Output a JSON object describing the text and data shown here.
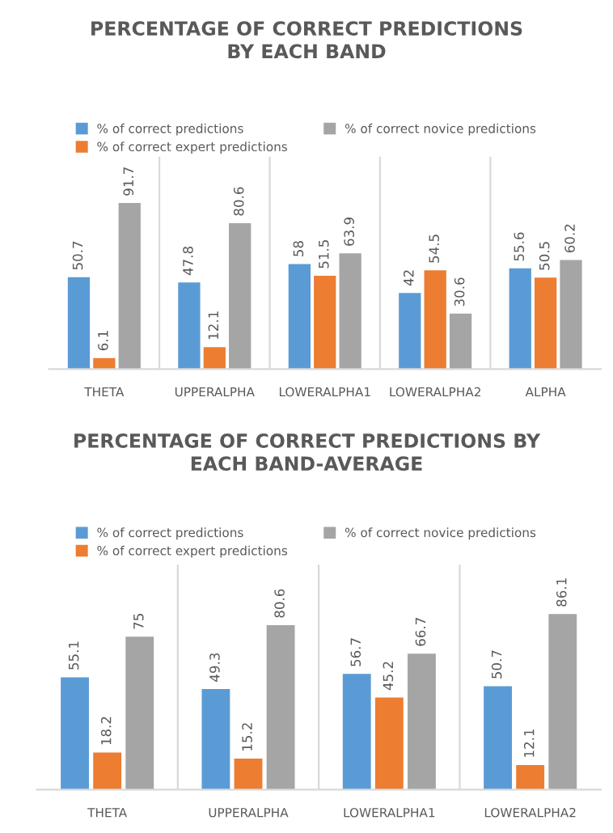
{
  "chart_data": [
    {
      "type": "bar",
      "title": "PERCENTAGE OF CORRECT PREDICTIONS\nBY EACH BAND",
      "categories": [
        "THETA",
        "UPPERALPHA",
        "LOWERALPHA1",
        "LOWERALPHA2",
        "ALPHA"
      ],
      "series": [
        {
          "name": "% of correct predictions",
          "color": "#5b9bd5",
          "values": [
            50.7,
            47.8,
            58,
            42,
            55.6
          ]
        },
        {
          "name": "% of correct expert predictions",
          "color": "#ed7d31",
          "values": [
            6.1,
            12.1,
            51.5,
            54.5,
            50.5
          ]
        },
        {
          "name": "% of correct novice predictions",
          "color": "#a5a5a5",
          "values": [
            91.7,
            80.6,
            63.9,
            30.6,
            60.2
          ]
        }
      ],
      "data_labels": true,
      "legend": "top",
      "grid": "x"
    },
    {
      "type": "bar",
      "title": "PERCENTAGE OF CORRECT PREDICTIONS BY\nEACH BAND-AVERAGE",
      "categories": [
        "THETA",
        "UPPERALPHA",
        "LOWERALPHA1",
        "LOWERALPHA2"
      ],
      "series": [
        {
          "name": "% of correct predictions",
          "color": "#5b9bd5",
          "values": [
            55.1,
            49.3,
            56.7,
            50.7
          ]
        },
        {
          "name": "% of correct expert predictions",
          "color": "#ed7d31",
          "values": [
            18.2,
            15.2,
            45.2,
            12.1
          ]
        },
        {
          "name": "% of correct novice predictions",
          "color": "#a5a5a5",
          "values": [
            75,
            80.6,
            66.7,
            86.1
          ]
        }
      ],
      "data_labels": true,
      "legend": "top",
      "grid": "x"
    }
  ]
}
